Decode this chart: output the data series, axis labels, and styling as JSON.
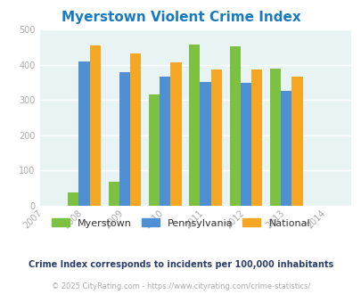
{
  "title": "Myerstown Violent Crime Index",
  "title_color": "#1a7abf",
  "years": [
    2007,
    2008,
    2009,
    2010,
    2011,
    2012,
    2013,
    2014
  ],
  "data_years": [
    2008,
    2009,
    2010,
    2011,
    2012,
    2013
  ],
  "myerstown": [
    38,
    68,
    315,
    458,
    453,
    388
  ],
  "pennsylvania": [
    410,
    380,
    367,
    352,
    348,
    327
  ],
  "national": [
    455,
    432,
    407,
    387,
    387,
    366
  ],
  "myerstown_color": "#7dc142",
  "pennsylvania_color": "#4f90d4",
  "national_color": "#f5a623",
  "bar_width": 0.27,
  "ylim": [
    0,
    500
  ],
  "yticks": [
    0,
    100,
    200,
    300,
    400,
    500
  ],
  "bg_color": "#e8f4f4",
  "grid_color": "#ffffff",
  "legend_labels": [
    "Myerstown",
    "Pennsylvania",
    "National"
  ],
  "footnote1": "Crime Index corresponds to incidents per 100,000 inhabitants",
  "footnote2": "© 2025 CityRating.com - https://www.cityrating.com/crime-statistics/",
  "footnote1_color": "#2c3e6b",
  "footnote2_color": "#aaaaaa"
}
